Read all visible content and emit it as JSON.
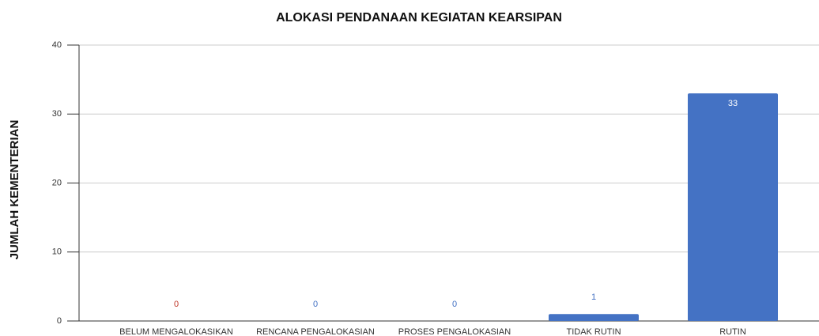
{
  "chart_data": {
    "type": "bar",
    "title": "ALOKASI PENDANAAN KEGIATAN KEARSIPAN",
    "y_label": "JUMLAH KEMENTERIAN",
    "categories": [
      "BELUM MENGALOKASIKAN",
      "RENCANA PENGALOKASIAN",
      "PROSES PENGALOKASIAN",
      "TIDAK RUTIN",
      "RUTIN"
    ],
    "values": [
      0,
      0,
      0,
      1,
      33
    ],
    "color": "#4472c4",
    "label_colors": [
      "#c0392b",
      "#4472c4",
      "#4472c4",
      "#4472c4",
      "#ffffff"
    ],
    "ylim": [
      0,
      40
    ],
    "yticks": [
      0,
      10,
      20,
      30,
      40
    ],
    "grid": true
  }
}
